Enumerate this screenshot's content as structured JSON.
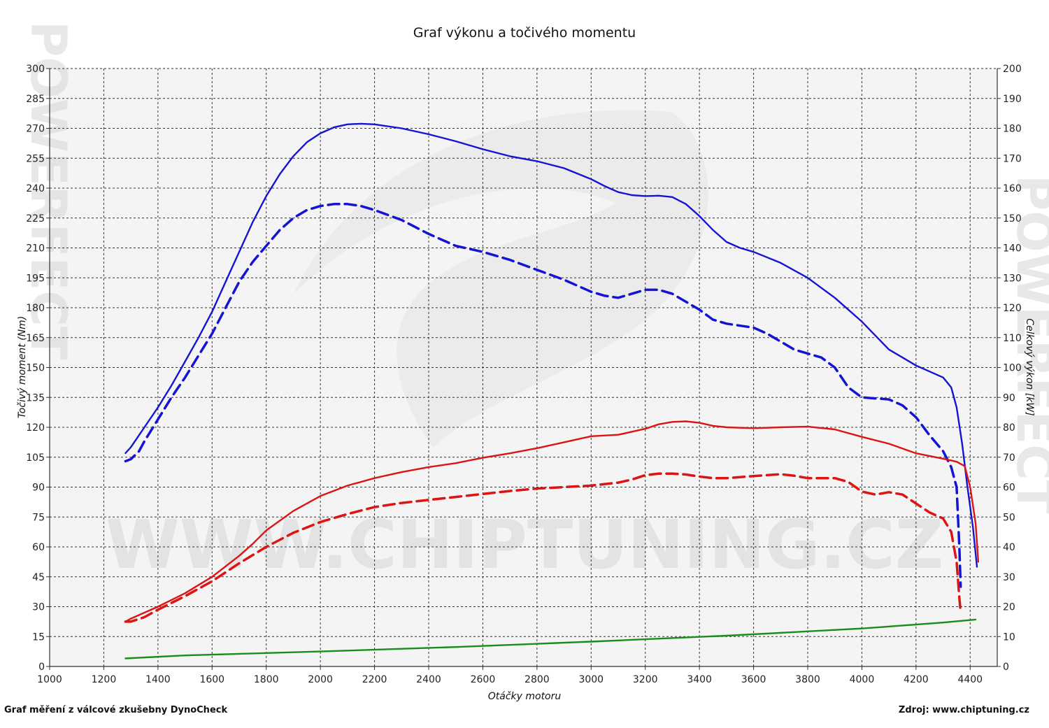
{
  "chart_data": {
    "type": "line",
    "title": "Graf výkonu a točivého momentu",
    "xlabel": "Otáčky motoru",
    "ylabel_left": "Točivý moment (Nm)",
    "ylabel_right": "Celkový výkon [kW]",
    "xlim": [
      1000,
      4500
    ],
    "ylim_left": [
      0,
      300
    ],
    "ylim_right": [
      0,
      200
    ],
    "x_ticks": [
      1000,
      1200,
      1400,
      1600,
      1800,
      2000,
      2200,
      2400,
      2600,
      2800,
      3000,
      3200,
      3400,
      3600,
      3800,
      4000,
      4200,
      4400
    ],
    "y_ticks_left": [
      0,
      15,
      30,
      45,
      60,
      75,
      90,
      105,
      120,
      135,
      150,
      165,
      180,
      195,
      210,
      225,
      240,
      255,
      270,
      285,
      300
    ],
    "y_ticks_right": [
      0,
      10,
      20,
      30,
      40,
      50,
      60,
      70,
      80,
      90,
      100,
      110,
      120,
      130,
      140,
      150,
      160,
      170,
      180,
      190,
      200
    ],
    "grid": true,
    "series": [
      {
        "axis": "left",
        "color": "#1414d2",
        "style": "solid",
        "x": [
          1280,
          1300,
          1320,
          1350,
          1400,
          1450,
          1500,
          1550,
          1600,
          1650,
          1700,
          1750,
          1800,
          1850,
          1900,
          1950,
          2000,
          2050,
          2100,
          2150,
          2200,
          2300,
          2400,
          2500,
          2600,
          2700,
          2800,
          2900,
          3000,
          3050,
          3100,
          3150,
          3200,
          3250,
          3300,
          3350,
          3400,
          3450,
          3500,
          3550,
          3600,
          3700,
          3800,
          3900,
          4000,
          4100,
          4150,
          4200,
          4250,
          4300,
          4330,
          4350,
          4370,
          4390,
          4410,
          4425
        ],
        "y": [
          107,
          110,
          114,
          120,
          130,
          141,
          153,
          165,
          178,
          193,
          208,
          223,
          236,
          247,
          256,
          263,
          267.5,
          270.5,
          272,
          272.3,
          272,
          270,
          267,
          263.5,
          259.5,
          256,
          253.5,
          250,
          244.5,
          241,
          238,
          236.5,
          236,
          236.2,
          235.5,
          232,
          226,
          219,
          213,
          210,
          208,
          202.5,
          195,
          185,
          173,
          159,
          155,
          151,
          148,
          145,
          140,
          130,
          112,
          90,
          70,
          50
        ]
      },
      {
        "axis": "left",
        "color": "#1414d2",
        "style": "dashed",
        "x": [
          1280,
          1300,
          1330,
          1350,
          1400,
          1450,
          1500,
          1550,
          1600,
          1650,
          1700,
          1750,
          1800,
          1850,
          1900,
          1950,
          2000,
          2050,
          2100,
          2150,
          2200,
          2300,
          2400,
          2500,
          2600,
          2700,
          2800,
          2900,
          3000,
          3050,
          3100,
          3150,
          3200,
          3250,
          3300,
          3400,
          3450,
          3500,
          3550,
          3600,
          3650,
          3700,
          3750,
          3800,
          3850,
          3900,
          3950,
          4000,
          4050,
          4100,
          4150,
          4200,
          4250,
          4300,
          4330,
          4350,
          4360,
          4365
        ],
        "y": [
          103,
          104,
          108,
          113,
          124,
          135,
          145,
          156,
          167,
          180,
          193,
          203,
          211,
          219,
          225,
          229,
          231,
          232,
          232,
          231,
          229,
          224,
          217,
          211,
          208,
          204,
          199,
          194,
          188,
          186,
          185,
          187,
          189,
          189,
          187,
          179,
          174,
          172,
          171,
          170,
          167,
          163,
          159,
          157,
          155,
          150,
          140,
          135,
          134.5,
          134,
          131,
          125,
          116,
          108,
          100,
          90,
          60,
          40
        ]
      },
      {
        "axis": "right",
        "color": "#dc1414",
        "style": "solid",
        "x": [
          1280,
          1300,
          1400,
          1500,
          1600,
          1700,
          1750,
          1800,
          1900,
          2000,
          2100,
          2200,
          2300,
          2400,
          2500,
          2600,
          2700,
          2800,
          2900,
          3000,
          3100,
          3200,
          3250,
          3300,
          3350,
          3400,
          3450,
          3500,
          3600,
          3700,
          3800,
          3900,
          4000,
          4100,
          4200,
          4300,
          4350,
          4380,
          4400,
          4420,
          4430
        ],
        "y": [
          15,
          16,
          20,
          24.5,
          30,
          37,
          41,
          45.5,
          52,
          57,
          60.5,
          63,
          65,
          66.7,
          68,
          69.8,
          71.3,
          73,
          75,
          77,
          77.5,
          79.5,
          81,
          81.8,
          82,
          81.5,
          80.5,
          80,
          79.7,
          80,
          80.2,
          79.3,
          76.8,
          74.5,
          71.3,
          69.5,
          68.5,
          67,
          60,
          48,
          35
        ]
      },
      {
        "axis": "right",
        "color": "#dc1414",
        "style": "dashed",
        "x": [
          1280,
          1300,
          1350,
          1400,
          1500,
          1600,
          1700,
          1800,
          1900,
          2000,
          2100,
          2200,
          2300,
          2400,
          2500,
          2600,
          2700,
          2800,
          2900,
          3000,
          3100,
          3150,
          3200,
          3250,
          3300,
          3350,
          3400,
          3450,
          3500,
          3600,
          3700,
          3750,
          3800,
          3900,
          3950,
          4000,
          4050,
          4100,
          4150,
          4200,
          4250,
          4300,
          4330,
          4350,
          4360,
          4365
        ],
        "y": [
          15,
          15,
          16.5,
          19,
          23.5,
          28.5,
          34.5,
          40,
          44.7,
          48.3,
          51,
          53.3,
          54.7,
          55.7,
          56.7,
          57.7,
          58.7,
          59.5,
          60,
          60.5,
          61.5,
          62.5,
          64,
          64.5,
          64.5,
          64.2,
          63.5,
          63,
          63,
          63.7,
          64.3,
          63.8,
          63,
          63,
          61.7,
          58.5,
          57.5,
          58.3,
          57.5,
          54.5,
          51.5,
          49.5,
          45,
          35,
          23,
          18
        ]
      },
      {
        "axis": "right",
        "color": "#198c19",
        "style": "solid",
        "x": [
          1280,
          1500,
          2000,
          2500,
          3000,
          3500,
          4000,
          4200,
          4300,
          4420
        ],
        "y": [
          2.7,
          3.7,
          5,
          6.5,
          8.3,
          10.3,
          12.7,
          14,
          14.7,
          15.7
        ]
      }
    ]
  },
  "footer": {
    "left": "Graf měření z válcové zkušebny DynoCheck",
    "right": "Zdroj: www.chiptuning.cz"
  },
  "watermark": {
    "url": "WWW.CHIPTUNING.CZ",
    "brand": "POWERFECT"
  }
}
